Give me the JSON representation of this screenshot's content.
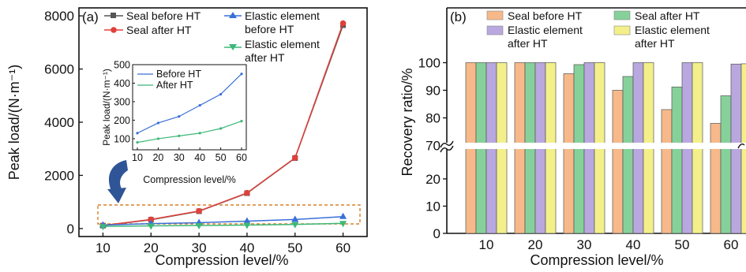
{
  "chart_data": [
    {
      "panel": "(a)",
      "type": "line",
      "xlabel": "Compression level/%",
      "ylabel": "Peak load/(N·m⁻¹)",
      "x": [
        10,
        20,
        30,
        40,
        50,
        60
      ],
      "xlim": [
        5,
        65
      ],
      "ylim": [
        -300,
        8300
      ],
      "yticks": [
        0,
        2000,
        4000,
        6000,
        8000
      ],
      "legend": [
        "Seal before HT",
        "Seal after HT",
        "Elastic element before HT",
        "Elastic element after HT"
      ],
      "legend_lines": {
        "seal_before": "Seal before HT",
        "seal_after": "Seal after HT",
        "elastic_before_1": "Elastic element",
        "elastic_before_2": "before HT",
        "elastic_after_1": "Elastic element",
        "elastic_after_2": "after HT"
      },
      "series": [
        {
          "name": "Seal before HT",
          "color": "#555555",
          "marker": "square",
          "values": [
            110,
            330,
            650,
            1330,
            2650,
            7650
          ]
        },
        {
          "name": "Seal after HT",
          "color": "#e0403a",
          "marker": "circle",
          "values": [
            115,
            340,
            660,
            1340,
            2660,
            7720
          ]
        },
        {
          "name": "Elastic element before HT",
          "color": "#3a6fd8",
          "marker": "triangle-up",
          "values": [
            130,
            185,
            220,
            280,
            340,
            450
          ]
        },
        {
          "name": "Elastic element after HT",
          "color": "#3cb878",
          "marker": "triangle-down",
          "values": [
            80,
            100,
            115,
            130,
            155,
            195
          ]
        }
      ],
      "highlight_box": true,
      "inset": {
        "xlabel": "Compression level/%",
        "ylabel": "Peak load/(N·m⁻¹)",
        "x": [
          10,
          20,
          30,
          40,
          50,
          60
        ],
        "ylim": [
          40,
          500
        ],
        "yticks": [
          100,
          200,
          300,
          400,
          500
        ],
        "series": [
          {
            "name": "Before HT",
            "color": "#3a6fd8",
            "values": [
              130,
              185,
              220,
              280,
              340,
              450
            ]
          },
          {
            "name": "After HT",
            "color": "#3cb878",
            "values": [
              80,
              100,
              115,
              130,
              155,
              195
            ]
          }
        ]
      }
    },
    {
      "panel": "(b)",
      "type": "bar",
      "xlabel": "Compression level/%",
      "ylabel": "Recovery ratio/%",
      "categories": [
        "10",
        "20",
        "30",
        "40",
        "50",
        "60"
      ],
      "broken_axis": true,
      "lower_range": [
        0,
        33
      ],
      "upper_range": [
        69,
        111
      ],
      "yticks_lower": [
        0,
        10,
        20
      ],
      "yticks_upper": [
        70,
        80,
        90,
        100
      ],
      "legend_lines": {
        "seal_before": "Seal before HT",
        "seal_after": "Seal after HT",
        "elastic_before_1": "Elastic element",
        "elastic_before_2": "after HT",
        "elastic_after_1": "Elastic element",
        "elastic_after_2": "after HT"
      },
      "series": [
        {
          "name": "Seal before HT",
          "color": "#f7b98a",
          "values": [
            100,
            100,
            96,
            90,
            83,
            78
          ]
        },
        {
          "name": "Seal after HT",
          "color": "#86d19a",
          "values": [
            100,
            100,
            99.3,
            95,
            91.2,
            88
          ]
        },
        {
          "name": "Elastic element after HT",
          "color": "#b9a8df",
          "values": [
            100,
            100,
            100,
            100,
            100,
            99.5
          ]
        },
        {
          "name": "Elastic element after HT",
          "color": "#f3f08a",
          "values": [
            100,
            100,
            100,
            100,
            100,
            99.6
          ]
        }
      ]
    }
  ]
}
